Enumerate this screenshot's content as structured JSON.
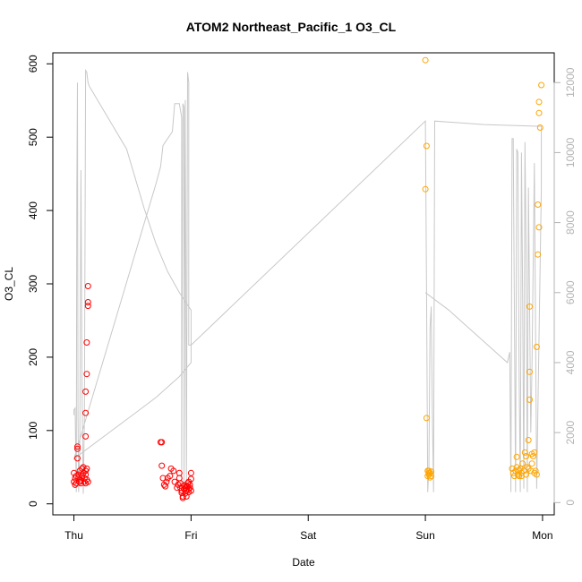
{
  "chart_data": {
    "type": "scatter",
    "title": "ATOM2 Northeast_Pacific_1 O3_CL",
    "xlabel": "Date",
    "ylabel": "O3_CL",
    "x_ticks": [
      "Thu",
      "Fri",
      "Sat",
      "Sun",
      "Mon"
    ],
    "xlim": [
      -0.18,
      4.1
    ],
    "ylim": [
      -15,
      615
    ],
    "y_ticks": [
      0,
      100,
      200,
      300,
      400,
      500,
      600
    ],
    "y2lim": [
      -350,
      12850
    ],
    "y2_ticks": [
      0,
      2000,
      4000,
      6000,
      8000,
      10000,
      12000
    ],
    "grid": false,
    "colors": {
      "red": "#ff0000",
      "orange": "#ffa500",
      "line": "#c8c8c8",
      "axis": "#000000",
      "axis2": "#b4b4b4"
    },
    "series": [
      {
        "color": "#ff0000",
        "marker": "open-circle",
        "axis": "left",
        "points": [
          [
            0.0,
            42
          ],
          [
            0.0,
            30
          ],
          [
            0.01,
            26
          ],
          [
            0.01,
            35
          ],
          [
            0.02,
            38
          ],
          [
            0.02,
            28
          ],
          [
            0.03,
            62
          ],
          [
            0.03,
            75
          ],
          [
            0.03,
            78
          ],
          [
            0.04,
            36
          ],
          [
            0.04,
            40
          ],
          [
            0.05,
            30
          ],
          [
            0.05,
            45
          ],
          [
            0.06,
            32
          ],
          [
            0.06,
            28
          ],
          [
            0.07,
            38
          ],
          [
            0.07,
            48
          ],
          [
            0.08,
            42
          ],
          [
            0.08,
            50
          ],
          [
            0.09,
            35
          ],
          [
            0.09,
            30
          ],
          [
            0.1,
            45
          ],
          [
            0.1,
            28
          ],
          [
            0.11,
            33
          ],
          [
            0.11,
            48
          ],
          [
            0.1,
            92
          ],
          [
            0.1,
            124
          ],
          [
            0.1,
            153
          ],
          [
            0.11,
            177
          ],
          [
            0.11,
            220
          ],
          [
            0.12,
            270
          ],
          [
            0.12,
            275
          ],
          [
            0.12,
            297
          ],
          [
            0.1,
            40
          ],
          [
            0.12,
            30
          ],
          [
            0.74,
            84
          ],
          [
            0.75,
            84
          ],
          [
            0.75,
            52
          ],
          [
            0.76,
            35
          ],
          [
            0.77,
            26
          ],
          [
            0.78,
            24
          ],
          [
            0.79,
            30
          ],
          [
            0.8,
            35
          ],
          [
            0.82,
            38
          ],
          [
            0.83,
            48
          ],
          [
            0.85,
            45
          ],
          [
            0.86,
            30
          ],
          [
            0.88,
            22
          ],
          [
            0.89,
            26
          ],
          [
            0.9,
            35
          ],
          [
            0.9,
            42
          ],
          [
            0.91,
            22
          ],
          [
            0.91,
            28
          ],
          [
            0.92,
            18
          ],
          [
            0.92,
            15
          ],
          [
            0.93,
            10
          ],
          [
            0.93,
            8
          ],
          [
            0.94,
            20
          ],
          [
            0.94,
            25
          ],
          [
            0.95,
            14
          ],
          [
            0.95,
            22
          ],
          [
            0.96,
            10
          ],
          [
            0.96,
            18
          ],
          [
            0.97,
            24
          ],
          [
            0.97,
            28
          ],
          [
            0.98,
            20
          ],
          [
            0.98,
            30
          ],
          [
            0.99,
            22
          ],
          [
            0.99,
            26
          ],
          [
            1.0,
            18
          ],
          [
            1.0,
            34
          ],
          [
            1.0,
            42
          ],
          [
            0.96,
            24
          ],
          [
            0.98,
            16
          ]
        ]
      },
      {
        "color": "#ffa500",
        "marker": "open-circle",
        "axis": "left",
        "points": [
          [
            3.0,
            605
          ],
          [
            3.01,
            488
          ],
          [
            3.0,
            429
          ],
          [
            3.01,
            117
          ],
          [
            3.02,
            38
          ],
          [
            3.03,
            40
          ],
          [
            3.03,
            45
          ],
          [
            3.04,
            42
          ],
          [
            3.04,
            36
          ],
          [
            3.05,
            44
          ],
          [
            3.05,
            38
          ],
          [
            3.03,
            42
          ],
          [
            3.02,
            45
          ],
          [
            3.74,
            48
          ],
          [
            3.75,
            42
          ],
          [
            3.76,
            38
          ],
          [
            3.77,
            45
          ],
          [
            3.78,
            50
          ],
          [
            3.78,
            64
          ],
          [
            3.79,
            40
          ],
          [
            3.8,
            38
          ],
          [
            3.81,
            48
          ],
          [
            3.82,
            42
          ],
          [
            3.83,
            55
          ],
          [
            3.84,
            45
          ],
          [
            3.85,
            70
          ],
          [
            3.86,
            65
          ],
          [
            3.86,
            40
          ],
          [
            3.87,
            50
          ],
          [
            3.88,
            48
          ],
          [
            3.88,
            87
          ],
          [
            3.89,
            142
          ],
          [
            3.89,
            180
          ],
          [
            3.89,
            269
          ],
          [
            3.9,
            45
          ],
          [
            3.91,
            55
          ],
          [
            3.91,
            68
          ],
          [
            3.92,
            65
          ],
          [
            3.93,
            70
          ],
          [
            3.93,
            42
          ],
          [
            3.94,
            45
          ],
          [
            3.95,
            40
          ],
          [
            3.95,
            214
          ],
          [
            3.96,
            340
          ],
          [
            3.96,
            408
          ],
          [
            3.97,
            377
          ],
          [
            3.97,
            533
          ],
          [
            3.97,
            548
          ],
          [
            3.98,
            513
          ],
          [
            3.99,
            571
          ],
          [
            3.82,
            38
          ],
          [
            3.8,
            46
          ]
        ]
      }
    ],
    "line_series": {
      "color": "#c8c8c8",
      "axis": "right",
      "points": [
        [
          0.0,
          2500
        ],
        [
          0.0,
          2650
        ],
        [
          0.01,
          2700
        ],
        [
          0.02,
          300
        ],
        [
          0.025,
          9000
        ],
        [
          0.03,
          12000
        ],
        [
          0.035,
          2500
        ],
        [
          0.04,
          300
        ],
        [
          0.05,
          1500
        ],
        [
          0.06,
          9500
        ],
        [
          0.07,
          3000
        ],
        [
          0.08,
          250
        ],
        [
          0.09,
          2500
        ],
        [
          0.1,
          12350
        ],
        [
          0.11,
          12300
        ],
        [
          0.12,
          12000
        ],
        [
          0.13,
          11900
        ],
        [
          0.45,
          10100
        ],
        [
          0.6,
          8400
        ],
        [
          0.7,
          7400
        ],
        [
          0.8,
          6600
        ],
        [
          0.9,
          6000
        ],
        [
          1.0,
          5500
        ],
        [
          1.0,
          4000
        ],
        [
          0.9,
          3600
        ],
        [
          0.7,
          3000
        ],
        [
          0.5,
          2500
        ],
        [
          0.3,
          2000
        ],
        [
          0.1,
          1500
        ],
        [
          0.0,
          1250
        ],
        [
          0.7,
          9100
        ],
        [
          0.74,
          9600
        ],
        [
          0.76,
          10200
        ],
        [
          0.8,
          10400
        ],
        [
          0.84,
          10600
        ],
        [
          0.86,
          11400
        ],
        [
          0.9,
          11400
        ],
        [
          0.92,
          11000
        ],
        [
          0.92,
          500
        ],
        [
          0.93,
          11400
        ],
        [
          0.94,
          11300
        ],
        [
          0.94,
          400
        ],
        [
          0.95,
          11500
        ],
        [
          0.96,
          300
        ],
        [
          0.97,
          12300
        ],
        [
          0.98,
          12000
        ],
        [
          0.98,
          4500
        ],
        [
          1.0,
          4500
        ],
        [
          3.0,
          10900
        ],
        [
          3.01,
          6000
        ],
        [
          3.02,
          300
        ],
        [
          3.03,
          1000
        ],
        [
          3.04,
          5000
        ],
        [
          3.05,
          5600
        ],
        [
          3.06,
          2500
        ],
        [
          3.07,
          300
        ],
        [
          3.08,
          10900
        ],
        [
          3.5,
          10800
        ],
        [
          3.99,
          10750
        ],
        [
          3.99,
          9000
        ],
        [
          3.95,
          400
        ],
        [
          3.93,
          9700
        ],
        [
          3.91,
          3800
        ],
        [
          3.9,
          2000
        ],
        [
          3.88,
          9000
        ],
        [
          3.87,
          300
        ],
        [
          3.86,
          7100
        ],
        [
          3.85,
          10300
        ],
        [
          3.84,
          400
        ],
        [
          3.83,
          6000
        ],
        [
          3.82,
          10000
        ],
        [
          3.81,
          300
        ],
        [
          3.8,
          3800
        ],
        [
          3.79,
          10000
        ],
        [
          3.78,
          10100
        ],
        [
          3.77,
          300
        ],
        [
          3.76,
          5400
        ],
        [
          3.75,
          10400
        ],
        [
          3.74,
          10400
        ],
        [
          3.73,
          300
        ],
        [
          3.72,
          4300
        ],
        [
          3.7,
          4000
        ],
        [
          3.2,
          5500
        ],
        [
          3.0,
          6000
        ]
      ]
    }
  }
}
